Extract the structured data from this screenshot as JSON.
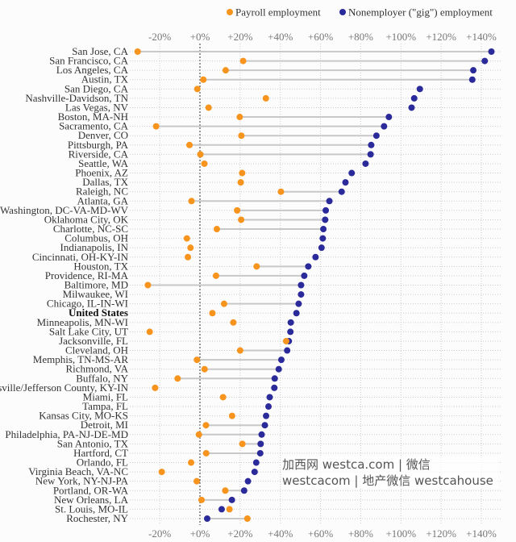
{
  "chart_data": {
    "type": "dot",
    "title": "",
    "xlabel": "",
    "ylabel": "",
    "xlim": [
      -30,
      148
    ],
    "x_ticks": [
      -20,
      0,
      20,
      40,
      60,
      80,
      100,
      120,
      140
    ],
    "x_tick_labels": [
      "-20%",
      "+0%",
      "+20%",
      "+40%",
      "+60%",
      "+80%",
      "+100%",
      "+120%",
      "+140%"
    ],
    "grid": true,
    "legend_position": "top-right",
    "series": [
      {
        "key": "payroll",
        "name": "Payroll employment",
        "color": "#f7941d"
      },
      {
        "key": "gig",
        "name": "Nonemployer (\"gig\") employment",
        "color": "#2b2a9a"
      }
    ],
    "rows": [
      {
        "label": "San Jose, CA",
        "payroll": -31,
        "gig": 145,
        "connector": true
      },
      {
        "label": "San Francisco, CA",
        "payroll": 21.5,
        "gig": 141.7,
        "connector": true
      },
      {
        "label": "Los Angeles, CA",
        "payroll": 12.8,
        "gig": 136,
        "connector": true
      },
      {
        "label": "Austin, TX",
        "payroll": 1.7,
        "gig": 135.5,
        "connector": true
      },
      {
        "label": "San Diego, CA",
        "payroll": -1.3,
        "gig": 109.4,
        "connector": false
      },
      {
        "label": "Nashville-Davidson, TN",
        "payroll": 32.8,
        "gig": 106.6,
        "connector": false
      },
      {
        "label": "Las Vegas, NV",
        "payroll": 4.3,
        "gig": 105.3,
        "connector": false
      },
      {
        "label": "Boston, MA-NH",
        "payroll": 19.8,
        "gig": 94,
        "connector": true
      },
      {
        "label": "Sacramento, CA",
        "payroll": -21.8,
        "gig": 91.6,
        "connector": true
      },
      {
        "label": "Denver, CO",
        "payroll": 20.6,
        "gig": 87.8,
        "connector": true
      },
      {
        "label": "Pittsburgh, PA",
        "payroll": -5.2,
        "gig": 85.2,
        "connector": true
      },
      {
        "label": "Riverside, CA",
        "payroll": 0.2,
        "gig": 84.9,
        "connector": true
      },
      {
        "label": "Seattle, WA",
        "payroll": 2.2,
        "gig": 82.4,
        "connector": false
      },
      {
        "label": "Phoenix, AZ",
        "payroll": 21,
        "gig": 75.5,
        "connector": false
      },
      {
        "label": "Dallas, TX",
        "payroll": 20.3,
        "gig": 72.4,
        "connector": false
      },
      {
        "label": "Raleigh, NC",
        "payroll": 40.3,
        "gig": 70.5,
        "connector": true
      },
      {
        "label": "Atlanta, GA",
        "payroll": -4.2,
        "gig": 64.4,
        "connector": true
      },
      {
        "label": "Washington, DC-VA-MD-WV",
        "payroll": 18.5,
        "gig": 62.6,
        "connector": true
      },
      {
        "label": "Oklahoma City, OK",
        "payroll": 20.5,
        "gig": 62.3,
        "connector": true
      },
      {
        "label": "Charlotte, NC-SC",
        "payroll": 8.4,
        "gig": 61.4,
        "connector": true
      },
      {
        "label": "Columbus, OH",
        "payroll": -6.5,
        "gig": 61.1,
        "connector": false
      },
      {
        "label": "Indianapolis, IN",
        "payroll": -4.7,
        "gig": 60.5,
        "connector": false
      },
      {
        "label": "Cincinnati, OH-KY-IN",
        "payroll": -6,
        "gig": 57.5,
        "connector": false
      },
      {
        "label": "Houston, TX",
        "payroll": 28.2,
        "gig": 53.9,
        "connector": true
      },
      {
        "label": "Providence, RI-MA",
        "payroll": 8,
        "gig": 51.9,
        "connector": true
      },
      {
        "label": "Baltimore, MD",
        "payroll": -25.9,
        "gig": 50.3,
        "connector": true
      },
      {
        "label": "Milwaukee, WI",
        "payroll": null,
        "gig": 50.3,
        "connector": false
      },
      {
        "label": "Chicago, IL-IN-WI",
        "payroll": 12,
        "gig": 49.1,
        "connector": true
      },
      {
        "label": "United States",
        "payroll": 6.2,
        "gig": 48,
        "connector": false,
        "bold": true
      },
      {
        "label": "Minneapolis, MN-WI",
        "payroll": 16.6,
        "gig": 45.2,
        "connector": false
      },
      {
        "label": "Salt Lake City, UT",
        "payroll": -25,
        "gig": 45,
        "connector": false
      },
      {
        "label": "Jacksonville, FL",
        "payroll": 42.9,
        "gig": 44.2,
        "connector": false
      },
      {
        "label": "Cleveland, OH",
        "payroll": 20,
        "gig": 43.4,
        "connector": true
      },
      {
        "label": "Memphis, TN-MS-AR",
        "payroll": -1.5,
        "gig": 40.5,
        "connector": true
      },
      {
        "label": "Richmond, VA",
        "payroll": 2.3,
        "gig": 39.2,
        "connector": true
      },
      {
        "label": "Buffalo, NY",
        "payroll": -11.1,
        "gig": 37.2,
        "connector": true
      },
      {
        "label": "Louisville/Jefferson County, KY-IN",
        "payroll": -22.3,
        "gig": 37,
        "connector": false
      },
      {
        "label": "Miami, FL",
        "payroll": 11.5,
        "gig": 34.7,
        "connector": false
      },
      {
        "label": "Tampa, FL",
        "payroll": null,
        "gig": 34.1,
        "connector": false
      },
      {
        "label": "Kansas City, MO-KS",
        "payroll": 16,
        "gig": 32.9,
        "connector": false
      },
      {
        "label": "Detroit, MI",
        "payroll": 3,
        "gig": 32.3,
        "connector": true
      },
      {
        "label": "Philadelphia, PA-NJ-DE-MD",
        "payroll": -0.5,
        "gig": 30.7,
        "connector": true
      },
      {
        "label": "San Antonio, TX",
        "payroll": 21.1,
        "gig": 30.2,
        "connector": true
      },
      {
        "label": "Hartford, CT",
        "payroll": 3.1,
        "gig": 30,
        "connector": true
      },
      {
        "label": "Orlando, FL",
        "payroll": -4.4,
        "gig": 28,
        "connector": false
      },
      {
        "label": "Virginia Beach, VA-NC",
        "payroll": -19,
        "gig": 27.2,
        "connector": false
      },
      {
        "label": "New York, NY-NJ-PA",
        "payroll": -1.6,
        "gig": 23.9,
        "connector": false
      },
      {
        "label": "Portland, OR-WA",
        "payroll": 12.6,
        "gig": 22,
        "connector": true
      },
      {
        "label": "New Orleans, LA",
        "payroll": 0.8,
        "gig": 15.9,
        "connector": true
      },
      {
        "label": "St. Louis, MO-IL",
        "payroll": 14.7,
        "gig": 10.8,
        "connector": false
      },
      {
        "label": "Rochester, NY",
        "payroll": 23.6,
        "gig": 3.6,
        "connector": true
      }
    ]
  },
  "watermark": "加西网 westca.com | 微信 westcacom | 地产微信 westcahouse"
}
